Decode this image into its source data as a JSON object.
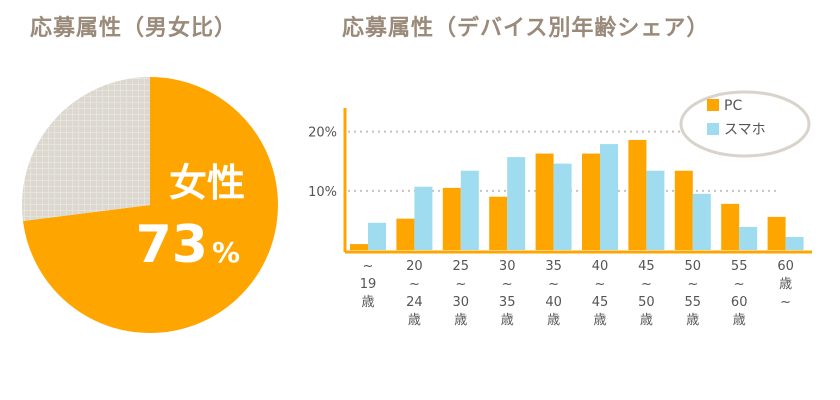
{
  "titles": {
    "left": "応募属性（男女比）",
    "right": "応募属性（デバイス別年齢シェア）"
  },
  "colors": {
    "accent": "#ffa500",
    "pc": "#ffa500",
    "smartphone": "#a0dcef",
    "male_fill": "#dcd8d0",
    "grid_line": "#c8c4bc",
    "text_muted": "#8a7a6a"
  },
  "chart_data": [
    {
      "type": "pie",
      "title": "応募属性（男女比）",
      "slices": [
        {
          "name": "女性",
          "value": 73,
          "color": "#ffa500"
        },
        {
          "name": "",
          "value": 27,
          "color": "#dcd8d0"
        }
      ],
      "label": {
        "name": "女性",
        "value": "73",
        "unit": "%"
      }
    },
    {
      "type": "bar",
      "title": "応募属性（デバイス別年齢シェア）",
      "categories": [
        [
          "~",
          "19",
          "歳"
        ],
        [
          "20",
          "~",
          "24",
          "歳"
        ],
        [
          "25",
          "~",
          "30",
          "歳"
        ],
        [
          "30",
          "~",
          "35",
          "歳"
        ],
        [
          "35",
          "~",
          "40",
          "歳"
        ],
        [
          "40",
          "~",
          "45",
          "歳"
        ],
        [
          "45",
          "~",
          "50",
          "歳"
        ],
        [
          "50",
          "~",
          "55",
          "歳"
        ],
        [
          "55",
          "~",
          "60",
          "歳"
        ],
        [
          "60",
          "歳",
          "~"
        ]
      ],
      "series": [
        {
          "name": "PC",
          "color": "#ffa500",
          "values": [
            1,
            5.3,
            10.5,
            9,
            16.3,
            16.3,
            18.6,
            13.4,
            7.8,
            5.6
          ]
        },
        {
          "name": "スマホ",
          "color": "#a0dcef",
          "values": [
            4.6,
            10.7,
            13.4,
            15.7,
            14.6,
            17.9,
            13.4,
            9.5,
            3.9,
            2.2
          ]
        }
      ],
      "ylim": [
        0,
        24
      ],
      "yticks": [
        {
          "value": 10,
          "label": "10%"
        },
        {
          "value": 20,
          "label": "20%"
        }
      ],
      "grid": true,
      "legend": "top-right",
      "xlabel": "",
      "ylabel": ""
    }
  ]
}
